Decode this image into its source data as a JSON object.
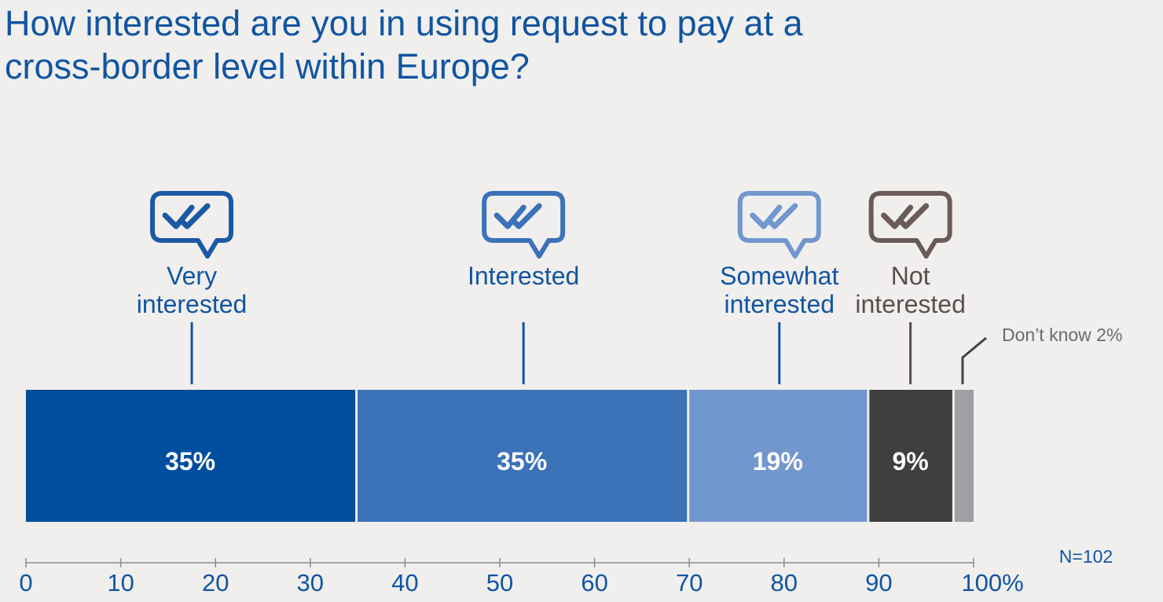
{
  "chart_data": {
    "type": "bar",
    "orientation": "horizontal-stacked",
    "title": "How interested are you in using request to pay at a cross-border level within Europe?",
    "categories": [
      "Very interested",
      "Interested",
      "Somewhat interested",
      "Not interested",
      "Don’t know"
    ],
    "values": [
      35,
      35,
      19,
      9,
      2
    ],
    "value_labels": [
      "35%",
      "35%",
      "19%",
      "9%",
      "2%"
    ],
    "category_label_lines": [
      [
        "Very",
        "interested"
      ],
      [
        "Interested"
      ],
      [
        "Somewhat",
        "interested"
      ],
      [
        "Not",
        "interested"
      ],
      [
        "Don’t know 2%"
      ]
    ],
    "colors": [
      "#004f9f",
      "#3b72b8",
      "#7296ce",
      "#403f3f",
      "#a09fa6"
    ],
    "label_colors": [
      "#1155a1",
      "#1155a1",
      "#1155a1",
      "#5a4f4e",
      "#6c6b6e"
    ],
    "icon": "check-chat-icon",
    "icon_colors": [
      "#1c59a4",
      "#3b72b8",
      "#7296ce",
      "#6a5b58"
    ],
    "x_ticks": [
      "0",
      "10",
      "20",
      "30",
      "40",
      "50",
      "60",
      "70",
      "80",
      "90",
      "100%"
    ],
    "xlim": [
      0,
      100
    ],
    "sample_note": "N=102",
    "grid": false,
    "legend": "none"
  }
}
